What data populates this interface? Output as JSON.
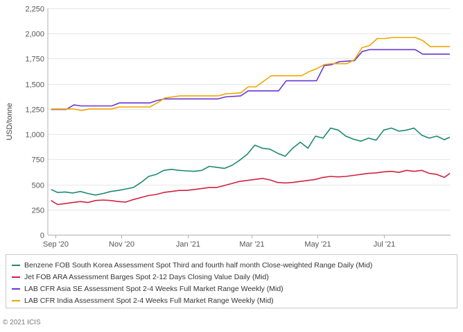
{
  "chart_data": {
    "type": "line",
    "ylabel": "USD/tonne",
    "xlabel": "",
    "title": "",
    "ylim": [
      0,
      2250
    ],
    "yticks": [
      "0",
      "250",
      "500",
      "750",
      "1,000",
      "1,250",
      "1,500",
      "1,750",
      "2,000",
      "2,250"
    ],
    "ytick_values": [
      0,
      250,
      500,
      750,
      1000,
      1250,
      1500,
      1750,
      2000,
      2250
    ],
    "xlim": [
      "2020-09-01",
      "2021-08-31"
    ],
    "xticks": [
      "Sep '20",
      "Nov '20",
      "Jan '21",
      "Mar '21",
      "May '21",
      "Jul '21"
    ],
    "xtick_dates": [
      "2020-09-01",
      "2020-11-01",
      "2021-01-01",
      "2021-03-01",
      "2021-05-01",
      "2021-07-01"
    ],
    "grid": "horizontal",
    "legend_position": "bottom",
    "series": [
      {
        "name": "Benzene FOB South Korea Assessment Spot Third and fourth half month Close-weighted Range Daily (Mid)",
        "color": "#1a8a6e",
        "points": [
          [
            "2020-08-28",
            450
          ],
          [
            "2020-09-03",
            420
          ],
          [
            "2020-09-10",
            425
          ],
          [
            "2020-09-17",
            415
          ],
          [
            "2020-09-24",
            430
          ],
          [
            "2020-10-01",
            410
          ],
          [
            "2020-10-08",
            395
          ],
          [
            "2020-10-15",
            410
          ],
          [
            "2020-10-22",
            430
          ],
          [
            "2020-10-29",
            440
          ],
          [
            "2020-11-05",
            455
          ],
          [
            "2020-11-12",
            470
          ],
          [
            "2020-11-19",
            520
          ],
          [
            "2020-11-26",
            580
          ],
          [
            "2020-12-03",
            600
          ],
          [
            "2020-12-10",
            640
          ],
          [
            "2020-12-17",
            650
          ],
          [
            "2020-12-24",
            640
          ],
          [
            "2020-12-31",
            635
          ],
          [
            "2021-01-07",
            630
          ],
          [
            "2021-01-14",
            640
          ],
          [
            "2021-01-21",
            680
          ],
          [
            "2021-01-28",
            670
          ],
          [
            "2021-02-04",
            660
          ],
          [
            "2021-02-11",
            690
          ],
          [
            "2021-02-18",
            740
          ],
          [
            "2021-02-25",
            800
          ],
          [
            "2021-03-04",
            890
          ],
          [
            "2021-03-11",
            860
          ],
          [
            "2021-03-18",
            850
          ],
          [
            "2021-03-25",
            810
          ],
          [
            "2021-04-01",
            780
          ],
          [
            "2021-04-08",
            860
          ],
          [
            "2021-04-15",
            920
          ],
          [
            "2021-04-22",
            860
          ],
          [
            "2021-04-29",
            980
          ],
          [
            "2021-05-06",
            960
          ],
          [
            "2021-05-13",
            1060
          ],
          [
            "2021-05-20",
            1040
          ],
          [
            "2021-05-27",
            980
          ],
          [
            "2021-06-03",
            950
          ],
          [
            "2021-06-10",
            930
          ],
          [
            "2021-06-17",
            960
          ],
          [
            "2021-06-24",
            940
          ],
          [
            "2021-07-01",
            1040
          ],
          [
            "2021-07-08",
            1060
          ],
          [
            "2021-07-15",
            1030
          ],
          [
            "2021-07-22",
            1040
          ],
          [
            "2021-07-29",
            1060
          ],
          [
            "2021-08-05",
            990
          ],
          [
            "2021-08-12",
            960
          ],
          [
            "2021-08-19",
            980
          ],
          [
            "2021-08-26",
            945
          ],
          [
            "2021-08-31",
            970
          ]
        ]
      },
      {
        "name": "Jet FOB ARA Assessment Barges Spot 2-12 Days Closing Value Daily (Mid)",
        "color": "#d1213f",
        "points": [
          [
            "2020-08-28",
            340
          ],
          [
            "2020-09-03",
            300
          ],
          [
            "2020-09-10",
            310
          ],
          [
            "2020-09-17",
            320
          ],
          [
            "2020-09-24",
            330
          ],
          [
            "2020-10-01",
            320
          ],
          [
            "2020-10-08",
            340
          ],
          [
            "2020-10-15",
            345
          ],
          [
            "2020-10-22",
            340
          ],
          [
            "2020-10-29",
            330
          ],
          [
            "2020-11-05",
            325
          ],
          [
            "2020-11-12",
            350
          ],
          [
            "2020-11-19",
            370
          ],
          [
            "2020-11-26",
            390
          ],
          [
            "2020-12-03",
            400
          ],
          [
            "2020-12-10",
            420
          ],
          [
            "2020-12-17",
            430
          ],
          [
            "2020-12-24",
            440
          ],
          [
            "2020-12-31",
            440
          ],
          [
            "2021-01-07",
            450
          ],
          [
            "2021-01-14",
            460
          ],
          [
            "2021-01-21",
            470
          ],
          [
            "2021-01-28",
            470
          ],
          [
            "2021-02-04",
            490
          ],
          [
            "2021-02-11",
            510
          ],
          [
            "2021-02-18",
            530
          ],
          [
            "2021-02-25",
            540
          ],
          [
            "2021-03-04",
            550
          ],
          [
            "2021-03-11",
            560
          ],
          [
            "2021-03-18",
            545
          ],
          [
            "2021-03-25",
            520
          ],
          [
            "2021-04-01",
            515
          ],
          [
            "2021-04-08",
            520
          ],
          [
            "2021-04-15",
            530
          ],
          [
            "2021-04-22",
            540
          ],
          [
            "2021-04-29",
            550
          ],
          [
            "2021-05-06",
            570
          ],
          [
            "2021-05-13",
            580
          ],
          [
            "2021-05-20",
            575
          ],
          [
            "2021-05-27",
            580
          ],
          [
            "2021-06-03",
            590
          ],
          [
            "2021-06-10",
            600
          ],
          [
            "2021-06-17",
            610
          ],
          [
            "2021-06-24",
            615
          ],
          [
            "2021-07-01",
            625
          ],
          [
            "2021-07-08",
            630
          ],
          [
            "2021-07-15",
            620
          ],
          [
            "2021-07-22",
            640
          ],
          [
            "2021-07-29",
            630
          ],
          [
            "2021-08-05",
            640
          ],
          [
            "2021-08-12",
            610
          ],
          [
            "2021-08-19",
            600
          ],
          [
            "2021-08-26",
            570
          ],
          [
            "2021-08-31",
            610
          ]
        ]
      },
      {
        "name": "LAB CFR Asia SE Assessment Spot 2-4 Weeks Full Market Range Weekly (Mid)",
        "color": "#6a35d4",
        "points": [
          [
            "2020-08-28",
            1245
          ],
          [
            "2020-09-11",
            1245
          ],
          [
            "2020-09-18",
            1290
          ],
          [
            "2020-09-25",
            1280
          ],
          [
            "2020-10-23",
            1280
          ],
          [
            "2020-10-30",
            1310
          ],
          [
            "2020-11-27",
            1310
          ],
          [
            "2020-12-04",
            1335
          ],
          [
            "2020-12-11",
            1350
          ],
          [
            "2021-01-29",
            1350
          ],
          [
            "2021-02-05",
            1370
          ],
          [
            "2021-02-19",
            1380
          ],
          [
            "2021-02-26",
            1430
          ],
          [
            "2021-03-26",
            1430
          ],
          [
            "2021-04-02",
            1530
          ],
          [
            "2021-04-30",
            1530
          ],
          [
            "2021-05-07",
            1680
          ],
          [
            "2021-05-14",
            1690
          ],
          [
            "2021-05-21",
            1720
          ],
          [
            "2021-06-04",
            1730
          ],
          [
            "2021-06-11",
            1820
          ],
          [
            "2021-06-18",
            1840
          ],
          [
            "2021-07-30",
            1840
          ],
          [
            "2021-08-06",
            1795
          ],
          [
            "2021-08-31",
            1795
          ]
        ]
      },
      {
        "name": "LAB CFR India Assessment Spot 2-4 Weeks Full Market Range Weekly (Mid)",
        "color": "#f0a500",
        "points": [
          [
            "2020-08-28",
            1250
          ],
          [
            "2020-09-18",
            1250
          ],
          [
            "2020-09-25",
            1235
          ],
          [
            "2020-10-02",
            1250
          ],
          [
            "2020-10-23",
            1250
          ],
          [
            "2020-10-30",
            1270
          ],
          [
            "2020-11-27",
            1270
          ],
          [
            "2020-12-04",
            1310
          ],
          [
            "2020-12-11",
            1360
          ],
          [
            "2020-12-25",
            1380
          ],
          [
            "2021-01-29",
            1380
          ],
          [
            "2021-02-05",
            1400
          ],
          [
            "2021-02-19",
            1410
          ],
          [
            "2021-02-26",
            1470
          ],
          [
            "2021-03-05",
            1470
          ],
          [
            "2021-03-19",
            1580
          ],
          [
            "2021-04-16",
            1580
          ],
          [
            "2021-04-23",
            1620
          ],
          [
            "2021-04-30",
            1650
          ],
          [
            "2021-05-07",
            1690
          ],
          [
            "2021-05-14",
            1700
          ],
          [
            "2021-05-28",
            1700
          ],
          [
            "2021-06-04",
            1740
          ],
          [
            "2021-06-11",
            1860
          ],
          [
            "2021-06-18",
            1880
          ],
          [
            "2021-06-25",
            1950
          ],
          [
            "2021-07-02",
            1950
          ],
          [
            "2021-07-09",
            1960
          ],
          [
            "2021-07-30",
            1960
          ],
          [
            "2021-08-06",
            1930
          ],
          [
            "2021-08-13",
            1870
          ],
          [
            "2021-08-31",
            1870
          ]
        ]
      }
    ]
  },
  "footer": {
    "copyright": "© 2021 ICIS"
  }
}
